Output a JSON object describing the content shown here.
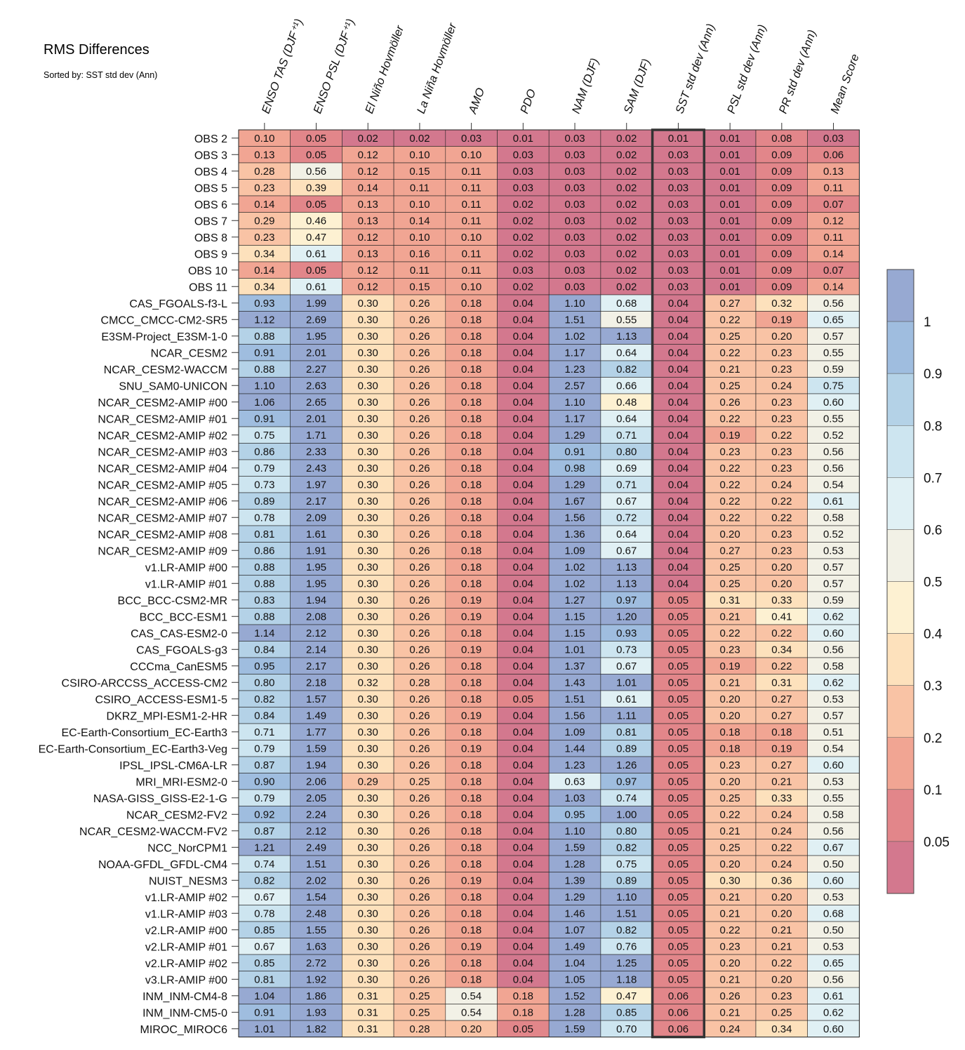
{
  "chart_data": {
    "type": "heatmap",
    "title": "RMS Differences",
    "subtitle": "Sorted by: SST std dev (Ann)",
    "highlight_column": "SST std dev (Ann)",
    "columns": [
      "ENSO TAS (DJF⁺¹)",
      "ENSO PSL (DJF⁺¹)",
      "El Niño Hovmöller",
      "La Niña Hovmöller",
      "AMO",
      "PDO",
      "NAM (DJF)",
      "SAM (DJF)",
      "SST std dev (Ann)",
      "PSL std dev (Ann)",
      "PR std dev (Ann)",
      "Mean Score"
    ],
    "rows": [
      "OBS 2",
      "OBS 3",
      "OBS 4",
      "OBS 5",
      "OBS 6",
      "OBS 7",
      "OBS 8",
      "OBS 9",
      "OBS 10",
      "OBS 11",
      "CAS_FGOALS-f3-L",
      "CMCC_CMCC-CM2-SR5",
      "E3SM-Project_E3SM-1-0",
      "NCAR_CESM2",
      "NCAR_CESM2-WACCM",
      "SNU_SAM0-UNICON",
      "NCAR_CESM2-AMIP  #00",
      "NCAR_CESM2-AMIP  #01",
      "NCAR_CESM2-AMIP  #02",
      "NCAR_CESM2-AMIP  #03",
      "NCAR_CESM2-AMIP  #04",
      "NCAR_CESM2-AMIP  #05",
      "NCAR_CESM2-AMIP  #06",
      "NCAR_CESM2-AMIP  #07",
      "NCAR_CESM2-AMIP  #08",
      "NCAR_CESM2-AMIP  #09",
      "v1.LR-AMIP  #00",
      "v1.LR-AMIP  #01",
      "BCC_BCC-CSM2-MR",
      "BCC_BCC-ESM1",
      "CAS_CAS-ESM2-0",
      "CAS_FGOALS-g3",
      "CCCma_CanESM5",
      "CSIRO-ARCCSS_ACCESS-CM2",
      "CSIRO_ACCESS-ESM1-5",
      "DKRZ_MPI-ESM1-2-HR",
      "EC-Earth-Consortium_EC-Earth3",
      "EC-Earth-Consortium_EC-Earth3-Veg",
      "IPSL_IPSL-CM6A-LR",
      "MRI_MRI-ESM2-0",
      "NASA-GISS_GISS-E2-1-G",
      "NCAR_CESM2-FV2",
      "NCAR_CESM2-WACCM-FV2",
      "NCC_NorCPM1",
      "NOAA-GFDL_GFDL-CM4",
      "NUIST_NESM3",
      "v1.LR-AMIP  #02",
      "v1.LR-AMIP  #03",
      "v2.LR-AMIP  #00",
      "v2.LR-AMIP  #01",
      "v2.LR-AMIP  #02",
      "v3.LR-AMIP  #00",
      "INM_INM-CM4-8",
      "INM_INM-CM5-0",
      "MIROC_MIROC6"
    ],
    "values": [
      [
        0.1,
        0.05,
        0.02,
        0.02,
        0.03,
        0.01,
        0.03,
        0.02,
        0.01,
        0.01,
        0.08,
        0.03
      ],
      [
        0.13,
        0.05,
        0.12,
        0.1,
        0.1,
        0.03,
        0.03,
        0.02,
        0.03,
        0.01,
        0.09,
        0.06
      ],
      [
        0.28,
        0.56,
        0.12,
        0.15,
        0.11,
        0.03,
        0.03,
        0.02,
        0.03,
        0.01,
        0.09,
        0.13
      ],
      [
        0.23,
        0.39,
        0.14,
        0.11,
        0.11,
        0.03,
        0.03,
        0.02,
        0.03,
        0.01,
        0.09,
        0.11
      ],
      [
        0.14,
        0.05,
        0.13,
        0.1,
        0.11,
        0.02,
        0.03,
        0.02,
        0.03,
        0.01,
        0.09,
        0.07
      ],
      [
        0.29,
        0.46,
        0.13,
        0.14,
        0.11,
        0.02,
        0.03,
        0.02,
        0.03,
        0.01,
        0.09,
        0.12
      ],
      [
        0.23,
        0.47,
        0.12,
        0.1,
        0.1,
        0.02,
        0.03,
        0.02,
        0.03,
        0.01,
        0.09,
        0.11
      ],
      [
        0.34,
        0.61,
        0.13,
        0.16,
        0.11,
        0.02,
        0.03,
        0.02,
        0.03,
        0.01,
        0.09,
        0.14
      ],
      [
        0.14,
        0.05,
        0.12,
        0.11,
        0.11,
        0.03,
        0.03,
        0.02,
        0.03,
        0.01,
        0.09,
        0.07
      ],
      [
        0.34,
        0.61,
        0.12,
        0.15,
        0.1,
        0.02,
        0.03,
        0.02,
        0.03,
        0.01,
        0.09,
        0.14
      ],
      [
        0.93,
        1.99,
        0.3,
        0.26,
        0.18,
        0.04,
        1.1,
        0.68,
        0.04,
        0.27,
        0.32,
        0.56
      ],
      [
        1.12,
        2.69,
        0.3,
        0.26,
        0.18,
        0.04,
        1.51,
        0.55,
        0.04,
        0.22,
        0.19,
        0.65
      ],
      [
        0.88,
        1.95,
        0.3,
        0.26,
        0.18,
        0.04,
        1.02,
        1.13,
        0.04,
        0.25,
        0.2,
        0.57
      ],
      [
        0.91,
        2.01,
        0.3,
        0.26,
        0.18,
        0.04,
        1.17,
        0.64,
        0.04,
        0.22,
        0.23,
        0.55
      ],
      [
        0.88,
        2.27,
        0.3,
        0.26,
        0.18,
        0.04,
        1.23,
        0.82,
        0.04,
        0.21,
        0.23,
        0.59
      ],
      [
        1.1,
        2.63,
        0.3,
        0.26,
        0.18,
        0.04,
        2.57,
        0.66,
        0.04,
        0.25,
        0.24,
        0.75
      ],
      [
        1.06,
        2.65,
        0.3,
        0.26,
        0.18,
        0.04,
        1.1,
        0.48,
        0.04,
        0.26,
        0.23,
        0.6
      ],
      [
        0.91,
        2.01,
        0.3,
        0.26,
        0.18,
        0.04,
        1.17,
        0.64,
        0.04,
        0.22,
        0.23,
        0.55
      ],
      [
        0.75,
        1.71,
        0.3,
        0.26,
        0.18,
        0.04,
        1.29,
        0.71,
        0.04,
        0.19,
        0.22,
        0.52
      ],
      [
        0.86,
        2.33,
        0.3,
        0.26,
        0.18,
        0.04,
        0.91,
        0.8,
        0.04,
        0.23,
        0.23,
        0.56
      ],
      [
        0.79,
        2.43,
        0.3,
        0.26,
        0.18,
        0.04,
        0.98,
        0.69,
        0.04,
        0.22,
        0.23,
        0.56
      ],
      [
        0.73,
        1.97,
        0.3,
        0.26,
        0.18,
        0.04,
        1.29,
        0.71,
        0.04,
        0.22,
        0.24,
        0.54
      ],
      [
        0.89,
        2.17,
        0.3,
        0.26,
        0.18,
        0.04,
        1.67,
        0.67,
        0.04,
        0.22,
        0.22,
        0.61
      ],
      [
        0.78,
        2.09,
        0.3,
        0.26,
        0.18,
        0.04,
        1.56,
        0.72,
        0.04,
        0.22,
        0.22,
        0.58
      ],
      [
        0.81,
        1.61,
        0.3,
        0.26,
        0.18,
        0.04,
        1.36,
        0.64,
        0.04,
        0.2,
        0.23,
        0.52
      ],
      [
        0.86,
        1.91,
        0.3,
        0.26,
        0.18,
        0.04,
        1.09,
        0.67,
        0.04,
        0.27,
        0.23,
        0.53
      ],
      [
        0.88,
        1.95,
        0.3,
        0.26,
        0.18,
        0.04,
        1.02,
        1.13,
        0.04,
        0.25,
        0.2,
        0.57
      ],
      [
        0.88,
        1.95,
        0.3,
        0.26,
        0.18,
        0.04,
        1.02,
        1.13,
        0.04,
        0.25,
        0.2,
        0.57
      ],
      [
        0.83,
        1.94,
        0.3,
        0.26,
        0.19,
        0.04,
        1.27,
        0.97,
        0.05,
        0.31,
        0.33,
        0.59
      ],
      [
        0.88,
        2.08,
        0.3,
        0.26,
        0.19,
        0.04,
        1.15,
        1.2,
        0.05,
        0.21,
        0.41,
        0.62
      ],
      [
        1.14,
        2.12,
        0.3,
        0.26,
        0.18,
        0.04,
        1.15,
        0.93,
        0.05,
        0.22,
        0.22,
        0.6
      ],
      [
        0.84,
        2.14,
        0.3,
        0.26,
        0.19,
        0.04,
        1.01,
        0.73,
        0.05,
        0.23,
        0.34,
        0.56
      ],
      [
        0.95,
        2.17,
        0.3,
        0.26,
        0.18,
        0.04,
        1.37,
        0.67,
        0.05,
        0.19,
        0.22,
        0.58
      ],
      [
        0.8,
        2.18,
        0.32,
        0.28,
        0.18,
        0.04,
        1.43,
        1.01,
        0.05,
        0.21,
        0.31,
        0.62
      ],
      [
        0.82,
        1.57,
        0.3,
        0.26,
        0.18,
        0.05,
        1.51,
        0.61,
        0.05,
        0.2,
        0.27,
        0.53
      ],
      [
        0.84,
        1.49,
        0.3,
        0.26,
        0.19,
        0.04,
        1.56,
        1.11,
        0.05,
        0.2,
        0.27,
        0.57
      ],
      [
        0.71,
        1.77,
        0.3,
        0.26,
        0.18,
        0.04,
        1.09,
        0.81,
        0.05,
        0.18,
        0.18,
        0.51
      ],
      [
        0.79,
        1.59,
        0.3,
        0.26,
        0.19,
        0.04,
        1.44,
        0.89,
        0.05,
        0.18,
        0.19,
        0.54
      ],
      [
        0.87,
        1.94,
        0.3,
        0.26,
        0.18,
        0.04,
        1.23,
        1.26,
        0.05,
        0.23,
        0.27,
        0.6
      ],
      [
        0.9,
        2.06,
        0.29,
        0.25,
        0.18,
        0.04,
        0.63,
        0.97,
        0.05,
        0.2,
        0.21,
        0.53
      ],
      [
        0.79,
        2.05,
        0.3,
        0.26,
        0.18,
        0.04,
        1.03,
        0.74,
        0.05,
        0.25,
        0.33,
        0.55
      ],
      [
        0.92,
        2.24,
        0.3,
        0.26,
        0.18,
        0.04,
        0.95,
        1.0,
        0.05,
        0.22,
        0.24,
        0.58
      ],
      [
        0.87,
        2.12,
        0.3,
        0.26,
        0.18,
        0.04,
        1.1,
        0.8,
        0.05,
        0.21,
        0.24,
        0.56
      ],
      [
        1.21,
        2.49,
        0.3,
        0.26,
        0.18,
        0.04,
        1.59,
        0.82,
        0.05,
        0.25,
        0.22,
        0.67
      ],
      [
        0.74,
        1.51,
        0.3,
        0.26,
        0.18,
        0.04,
        1.28,
        0.75,
        0.05,
        0.2,
        0.24,
        0.5
      ],
      [
        0.82,
        2.02,
        0.3,
        0.26,
        0.19,
        0.04,
        1.39,
        0.89,
        0.05,
        0.3,
        0.36,
        0.6
      ],
      [
        0.67,
        1.54,
        0.3,
        0.26,
        0.18,
        0.04,
        1.29,
        1.1,
        0.05,
        0.21,
        0.2,
        0.53
      ],
      [
        0.78,
        2.48,
        0.3,
        0.26,
        0.18,
        0.04,
        1.46,
        1.51,
        0.05,
        0.21,
        0.2,
        0.68
      ],
      [
        0.85,
        1.55,
        0.3,
        0.26,
        0.18,
        0.04,
        1.07,
        0.82,
        0.05,
        0.22,
        0.21,
        0.5
      ],
      [
        0.67,
        1.63,
        0.3,
        0.26,
        0.19,
        0.04,
        1.49,
        0.76,
        0.05,
        0.23,
        0.21,
        0.53
      ],
      [
        0.85,
        2.72,
        0.3,
        0.26,
        0.18,
        0.04,
        1.04,
        1.25,
        0.05,
        0.2,
        0.22,
        0.65
      ],
      [
        0.81,
        1.92,
        0.3,
        0.26,
        0.18,
        0.04,
        1.05,
        1.18,
        0.05,
        0.21,
        0.2,
        0.56
      ],
      [
        1.04,
        1.86,
        0.31,
        0.25,
        0.54,
        0.18,
        1.52,
        0.47,
        0.06,
        0.26,
        0.23,
        0.61
      ],
      [
        0.91,
        1.93,
        0.31,
        0.25,
        0.54,
        0.18,
        1.28,
        0.85,
        0.06,
        0.21,
        0.25,
        0.62
      ],
      [
        1.01,
        1.82,
        0.31,
        0.28,
        0.2,
        0.05,
        1.59,
        0.7,
        0.06,
        0.24,
        0.34,
        0.6
      ]
    ],
    "colorbar": {
      "levels": [
        0.05,
        0.1,
        0.2,
        0.3,
        0.4,
        0.5,
        0.6,
        0.7,
        0.8,
        0.9,
        1
      ],
      "labels": [
        "0.05",
        "0.1",
        "0.2",
        "0.3",
        "0.4",
        "0.5",
        "0.6",
        "0.7",
        "0.8",
        "0.9",
        "1"
      ],
      "colors": [
        "#d3788e",
        "#e2868a",
        "#f1a593",
        "#f9c3a5",
        "#fde1bc",
        "#fdf1d2",
        "#f2f1e6",
        "#e0f0f4",
        "#cde5f0",
        "#b4d2e7",
        "#9fbddf",
        "#97a9d2"
      ]
    }
  }
}
